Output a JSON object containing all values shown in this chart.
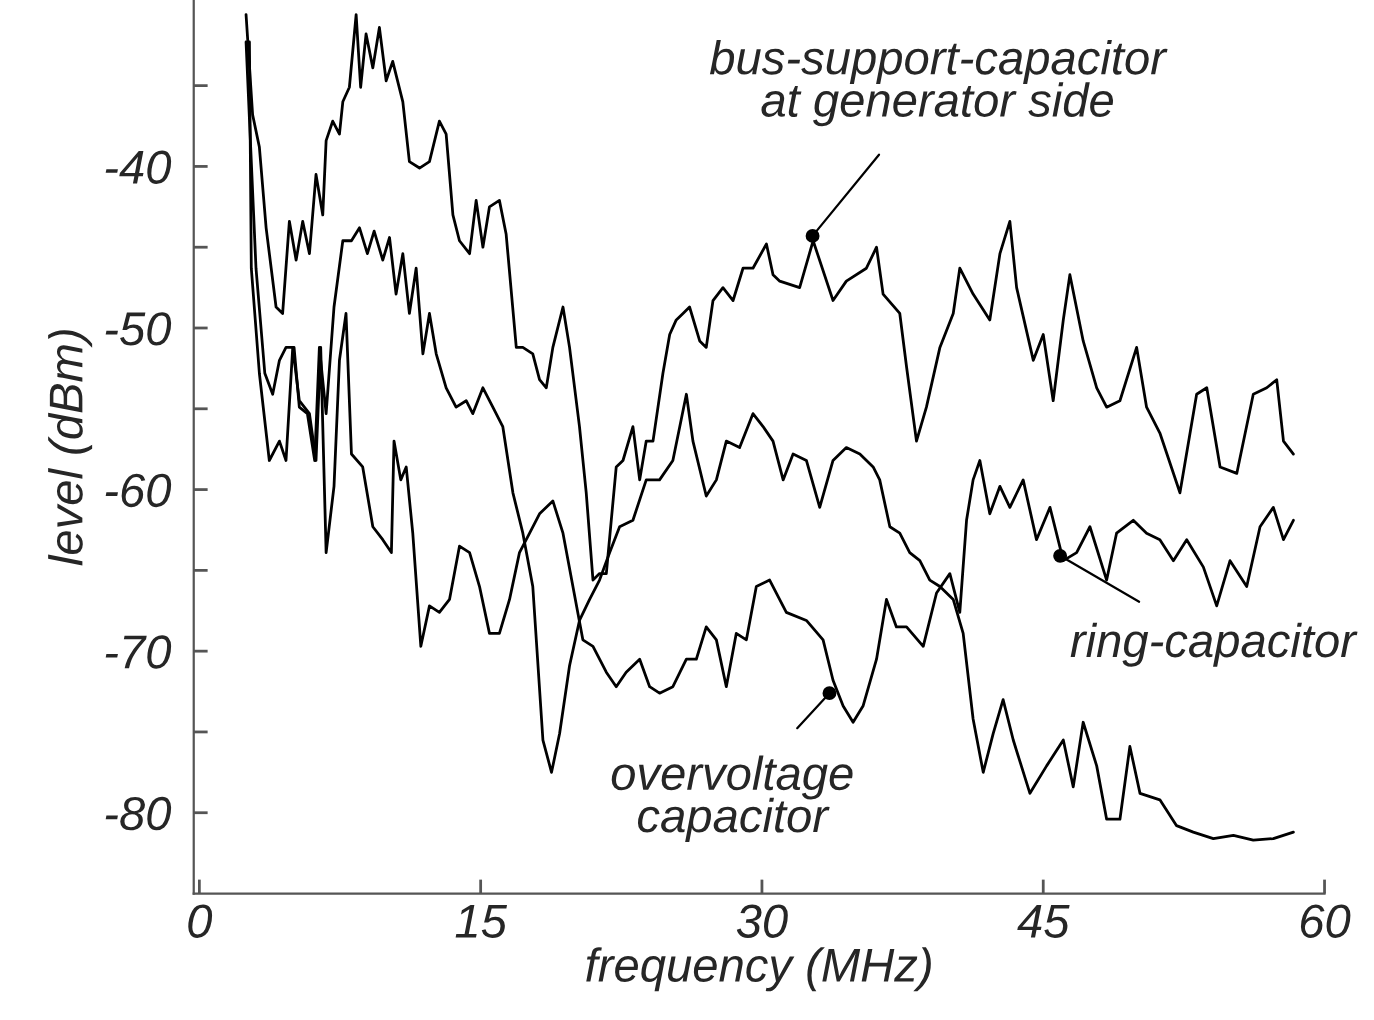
{
  "chart_data": {
    "type": "line",
    "xlabel": "frequency (MHz)",
    "ylabel": "level (dBm)",
    "xlim": [
      -0.3,
      60
    ],
    "xticks": [
      0,
      15,
      30,
      45,
      60
    ],
    "ylim": [
      -85,
      -29.7
    ],
    "yticks": [
      {
        "value": -35,
        "label": null
      },
      -40,
      {
        "value": -45,
        "label": null
      },
      -50,
      {
        "value": -55,
        "label": null
      },
      -60,
      {
        "value": -65,
        "label": null
      },
      -70,
      {
        "value": -75,
        "label": null
      },
      -80
    ],
    "grid": false,
    "marker": "none",
    "line_style": "solid",
    "series": [
      {
        "color": "#000000",
        "x": [
          2.49,
          2.84,
          3.2,
          3.56,
          4.09,
          4.44,
          4.8,
          5.16,
          5.51,
          5.87,
          6.22,
          6.58,
          6.76,
          7.11,
          7.47,
          7.65,
          8.0,
          8.36,
          8.6,
          8.89,
          9.25,
          9.6,
          9.96,
          10.31,
          10.85,
          11.2,
          11.74,
          12.27,
          12.8,
          13.16,
          13.52,
          13.87,
          14.41,
          14.76,
          15.12,
          15.47,
          16.0,
          16.36,
          16.9,
          17.25,
          17.78,
          18.14,
          18.5,
          18.85,
          19.39,
          19.74,
          20.27,
          20.63,
          20.99,
          21.34,
          21.7,
          22.23,
          22.59,
          23.12,
          23.48,
          23.83,
          24.19,
          24.72,
          25.08,
          25.43,
          25.79,
          26.14,
          26.68,
          27.03,
          27.39,
          27.92,
          28.46,
          28.99,
          29.52,
          30.24,
          30.59,
          30.95,
          32.01,
          32.73,
          33.79,
          34.5,
          35.57,
          36.11,
          36.46,
          37.35,
          37.71,
          38.24,
          38.77,
          39.49,
          40.2,
          40.55,
          41.26,
          42.15,
          42.69,
          43.22,
          43.58,
          44.47,
          45.0,
          45.53,
          46.07,
          46.42,
          47.13,
          47.85,
          48.38,
          49.09,
          49.98,
          50.51,
          51.22,
          52.29,
          53.18,
          53.72,
          54.43,
          55.32,
          56.2,
          56.92,
          57.45,
          57.81,
          58.34
        ],
        "values": [
          -30.6,
          -36.8,
          -38.8,
          -43.8,
          -48.7,
          -49.1,
          -43.4,
          -45.8,
          -43.4,
          -45.4,
          -40.5,
          -43.0,
          -38.4,
          -37.2,
          -38.0,
          -36.0,
          -35.1,
          -30.6,
          -35.1,
          -31.8,
          -33.9,
          -31.4,
          -34.7,
          -33.5,
          -36.0,
          -39.7,
          -40.1,
          -39.7,
          -37.2,
          -38.0,
          -43.0,
          -44.6,
          -45.4,
          -42.1,
          -45.0,
          -42.5,
          -42.1,
          -44.2,
          -51.2,
          -51.2,
          -51.6,
          -53.2,
          -53.7,
          -51.2,
          -48.7,
          -51.2,
          -56.1,
          -60.2,
          -65.6,
          -65.2,
          -65.2,
          -58.6,
          -58.2,
          -56.1,
          -59.4,
          -57.0,
          -57.0,
          -52.8,
          -50.4,
          -49.5,
          -49.1,
          -48.7,
          -50.8,
          -51.2,
          -48.3,
          -47.5,
          -48.3,
          -46.3,
          -46.3,
          -44.8,
          -46.7,
          -47.1,
          -47.5,
          -44.6,
          -48.3,
          -47.1,
          -46.3,
          -45.0,
          -47.9,
          -49.1,
          -52.4,
          -57.0,
          -54.9,
          -51.2,
          -49.1,
          -46.3,
          -47.9,
          -49.5,
          -45.4,
          -43.4,
          -47.5,
          -52.0,
          -50.4,
          -54.5,
          -49.5,
          -46.7,
          -50.8,
          -53.7,
          -54.9,
          -54.5,
          -51.2,
          -54.9,
          -56.5,
          -60.2,
          -54.1,
          -53.7,
          -58.6,
          -59.0,
          -54.1,
          -53.7,
          -53.2,
          -57.0,
          -57.8
        ]
      },
      {
        "color": "#000000",
        "x": [
          2.49,
          3.02,
          3.49,
          3.91,
          4.27,
          4.62,
          5.05,
          5.33,
          5.76,
          6.15,
          6.4,
          6.76,
          7.18,
          7.65,
          8.11,
          8.54,
          8.96,
          9.32,
          9.78,
          10.14,
          10.49,
          10.85,
          11.2,
          11.56,
          11.92,
          12.27,
          12.63,
          13.16,
          13.69,
          14.23,
          14.58,
          15.12,
          15.65,
          16.18,
          16.72,
          17.25,
          17.78,
          18.32,
          18.78,
          19.21,
          19.74,
          20.27,
          20.81,
          21.34,
          21.88,
          22.41,
          23.12,
          23.83,
          24.54,
          25.25,
          25.97,
          26.32,
          27.03,
          27.57,
          28.1,
          28.81,
          29.52,
          30.06,
          30.59,
          31.13,
          31.66,
          32.37,
          33.08,
          33.79,
          34.5,
          35.22,
          35.93,
          36.28,
          36.82,
          37.35,
          37.88,
          38.42,
          38.95,
          39.49,
          40.2,
          40.73,
          41.26,
          41.8,
          42.33,
          42.86,
          43.4,
          44.29,
          45.18,
          46.07,
          46.6,
          47.13,
          47.85,
          48.38,
          49.09,
          49.62,
          50.16,
          51.22,
          52.11,
          53.0,
          54.07,
          55.14,
          56.2,
          57.27,
          58.34
        ],
        "values": [
          -32.3,
          -46.3,
          -52.8,
          -54.1,
          -52.0,
          -51.2,
          -51.2,
          -54.9,
          -55.3,
          -58.2,
          -51.2,
          -55.3,
          -48.7,
          -44.6,
          -44.6,
          -43.8,
          -45.4,
          -44.0,
          -45.8,
          -44.4,
          -47.9,
          -45.4,
          -49.1,
          -46.3,
          -51.6,
          -49.1,
          -51.6,
          -53.7,
          -54.9,
          -54.5,
          -55.3,
          -53.7,
          -54.9,
          -56.1,
          -60.2,
          -62.7,
          -66.0,
          -75.5,
          -77.5,
          -75.1,
          -70.9,
          -68.1,
          -66.8,
          -65.6,
          -63.9,
          -62.3,
          -61.9,
          -59.4,
          -59.4,
          -58.2,
          -54.1,
          -57.0,
          -60.4,
          -59.4,
          -57.0,
          -57.4,
          -55.3,
          -56.1,
          -57.0,
          -59.4,
          -57.8,
          -58.2,
          -61.1,
          -58.2,
          -57.4,
          -57.8,
          -58.6,
          -59.4,
          -62.3,
          -62.7,
          -63.9,
          -64.4,
          -65.6,
          -66.0,
          -66.8,
          -68.9,
          -74.2,
          -77.5,
          -75.1,
          -73.0,
          -75.5,
          -78.8,
          -77.1,
          -75.5,
          -78.4,
          -74.4,
          -77.1,
          -80.4,
          -80.4,
          -75.9,
          -78.8,
          -79.2,
          -80.8,
          -81.2,
          -81.6,
          -81.4,
          -81.7,
          -81.6,
          -81.2
        ]
      },
      {
        "color": "#000000",
        "x": [
          2.67,
          2.77,
          3.2,
          3.73,
          4.27,
          4.62,
          4.98,
          5.33,
          5.87,
          6.22,
          6.47,
          6.76,
          7.18,
          7.47,
          7.82,
          8.11,
          8.71,
          9.25,
          9.78,
          10.24,
          10.38,
          10.74,
          11.03,
          11.38,
          11.81,
          12.27,
          12.8,
          13.34,
          13.87,
          14.41,
          14.94,
          15.47,
          16.0,
          16.54,
          17.07,
          17.61,
          18.14,
          18.85,
          19.39,
          19.92,
          20.45,
          20.99,
          21.7,
          22.23,
          22.76,
          23.48,
          24.01,
          24.54,
          25.25,
          25.97,
          26.5,
          27.03,
          27.57,
          28.1,
          28.63,
          29.17,
          29.7,
          30.41,
          31.3,
          32.37,
          33.26,
          33.79,
          34.33,
          34.86,
          35.39,
          36.11,
          36.64,
          37.17,
          37.71,
          38.6,
          39.31,
          40.02,
          40.55,
          40.91,
          41.26,
          41.62,
          42.15,
          42.69,
          43.22,
          43.93,
          44.64,
          45.36,
          46.07,
          46.78,
          47.49,
          48.38,
          48.91,
          49.8,
          50.51,
          51.22,
          51.94,
          52.65,
          53.54,
          54.25,
          54.96,
          55.85,
          56.56,
          57.27,
          57.81,
          58.34
        ],
        "values": [
          -32.3,
          -46.3,
          -52.8,
          -58.2,
          -57.0,
          -58.2,
          -51.2,
          -54.5,
          -55.3,
          -58.2,
          -51.2,
          -63.9,
          -59.8,
          -52.0,
          -49.1,
          -57.8,
          -58.6,
          -62.3,
          -63.1,
          -63.9,
          -57.0,
          -59.4,
          -58.6,
          -62.7,
          -69.7,
          -67.2,
          -67.6,
          -66.8,
          -63.5,
          -63.9,
          -66.0,
          -68.9,
          -68.9,
          -66.8,
          -63.9,
          -62.7,
          -61.5,
          -60.7,
          -62.7,
          -66.0,
          -69.3,
          -69.7,
          -71.3,
          -72.2,
          -71.3,
          -70.5,
          -72.2,
          -72.6,
          -72.2,
          -70.5,
          -70.5,
          -68.5,
          -69.3,
          -72.2,
          -68.9,
          -69.3,
          -66.0,
          -65.6,
          -67.6,
          -68.1,
          -69.3,
          -71.8,
          -73.4,
          -74.4,
          -73.4,
          -70.5,
          -66.8,
          -68.5,
          -68.5,
          -69.7,
          -66.4,
          -65.2,
          -67.6,
          -61.9,
          -59.4,
          -58.2,
          -61.5,
          -59.8,
          -61.1,
          -59.4,
          -63.1,
          -61.1,
          -64.4,
          -63.9,
          -62.3,
          -65.6,
          -62.7,
          -61.9,
          -62.7,
          -63.1,
          -64.4,
          -63.1,
          -64.8,
          -67.2,
          -64.4,
          -66.0,
          -62.3,
          -61.1,
          -63.1,
          -61.9
        ]
      }
    ],
    "annotations": [
      {
        "text": "bus-support-capacitor\nat generator side",
        "x": 32.7,
        "y": -44.3
      },
      {
        "text": "ring-capacitor",
        "x": 45.9,
        "y": -64.1
      },
      {
        "text": "overvoltage\ncapacitor",
        "x": 33.6,
        "y": -72.6
      }
    ]
  }
}
